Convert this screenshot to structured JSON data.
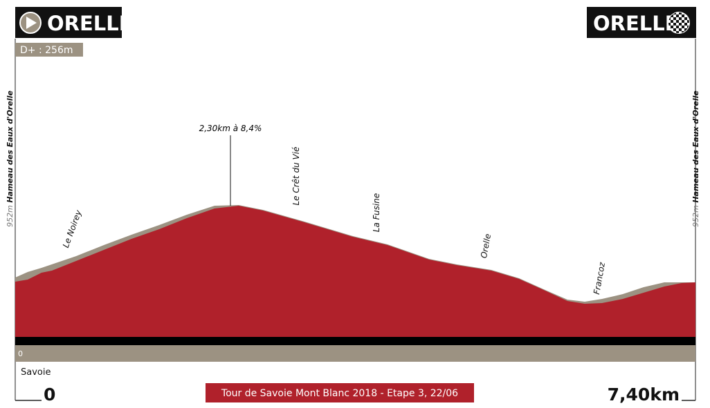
{
  "header": {
    "start": "ORELLE",
    "finish": "ORELLE",
    "climb": "D+ : 256m"
  },
  "altitude_left": {
    "value": "952m",
    "place": "Hameau des Eaux d'Orelle"
  },
  "altitude_right": {
    "value": "952m",
    "place": "Hameau des Eaux d'Orelle"
  },
  "annotation": "2,30km à 8,4%",
  "places": [
    "Le Noirey",
    "Le Crêt du Vié",
    "La Fusine",
    "Orelle",
    "Francoz"
  ],
  "base_altitude": "0",
  "region": "Savoie",
  "start_distance": "0",
  "finish_distance": "7,40km",
  "footer_title": "Tour de Savoie Mont Blanc 2018 - Etape 3, 22/06"
}
